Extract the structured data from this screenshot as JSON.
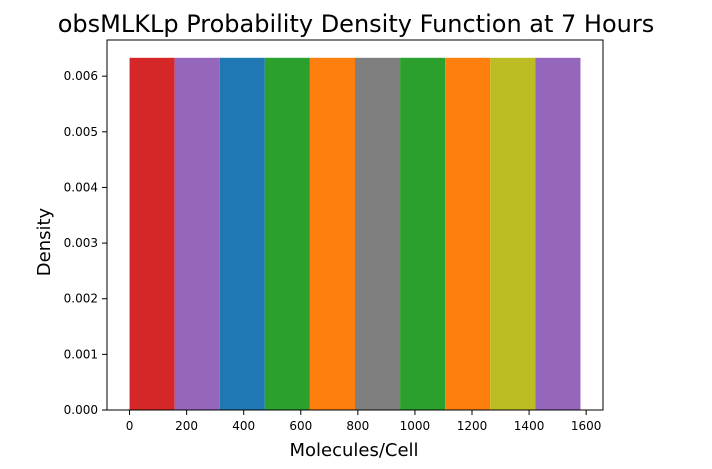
{
  "chart_data": {
    "type": "bar",
    "title": "obsMLKLp Probability Density Function at 7 Hours",
    "xlabel": "Molecules/Cell",
    "ylabel": "Density",
    "bin_edges": [
      0,
      158,
      316,
      474,
      632,
      790,
      948,
      1106,
      1264,
      1422,
      1580
    ],
    "values": [
      0.00633,
      0.00633,
      0.00633,
      0.00633,
      0.00633,
      0.00633,
      0.00633,
      0.00633,
      0.00633,
      0.00633
    ],
    "bar_colors": [
      "#d62728",
      "#9467bd",
      "#1f77b4",
      "#2ca02c",
      "#ff7f0e",
      "#7f7f7f",
      "#2ca02c",
      "#ff7f0e",
      "#bcbd22",
      "#9467bd"
    ],
    "xlim": [
      -79,
      1659
    ],
    "ylim": [
      0,
      0.00665
    ],
    "xticks": [
      0,
      200,
      400,
      600,
      800,
      1000,
      1200,
      1400,
      1600
    ],
    "xtick_labels": [
      "0",
      "200",
      "400",
      "600",
      "800",
      "1000",
      "1200",
      "1400",
      "1600"
    ],
    "yticks": [
      0,
      0.001,
      0.002,
      0.003,
      0.004,
      0.005,
      0.006
    ],
    "ytick_labels": [
      "0.000",
      "0.001",
      "0.002",
      "0.003",
      "0.004",
      "0.005",
      "0.006"
    ],
    "grid": false,
    "legend": "none"
  }
}
